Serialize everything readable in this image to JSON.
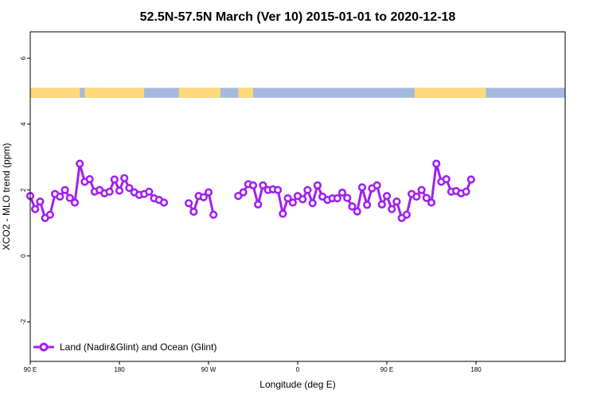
{
  "chart_data": {
    "type": "line",
    "title": "52.5N-57.5N March (Ver 10)   2015-01-01 to 2020-12-18",
    "xlabel": "Longitude (deg E)",
    "ylabel": "XCO2 - MLO trend (ppm)",
    "xlim": [
      90,
      630
    ],
    "ylim": [
      -3.2,
      6.8
    ],
    "x_ticks": [
      {
        "value": 90,
        "label": "90 E"
      },
      {
        "value": 180,
        "label": "180"
      },
      {
        "value": 270,
        "label": "90 W"
      },
      {
        "value": 360,
        "label": "0"
      },
      {
        "value": 450,
        "label": "90 E"
      },
      {
        "value": 540,
        "label": "180"
      }
    ],
    "y_ticks": [
      -2,
      0,
      2,
      4,
      6
    ],
    "grid": false,
    "legend": {
      "position": "bottom-left",
      "entries": [
        "Land (Nadir&Glint) and Ocean (Glint)"
      ]
    },
    "series": [
      {
        "name": "Land (Nadir&Glint) and Ocean (Glint)",
        "color": "#a020f0",
        "segments": [
          [
            [
              90,
              1.82
            ],
            [
              95,
              1.42
            ],
            [
              100,
              1.65
            ],
            [
              105,
              1.15
            ],
            [
              110,
              1.25
            ],
            [
              115,
              1.88
            ],
            [
              120,
              1.8
            ],
            [
              125,
              2.0
            ],
            [
              130,
              1.76
            ],
            [
              135,
              1.62
            ],
            [
              140,
              2.8
            ],
            [
              145,
              2.25
            ],
            [
              150,
              2.33
            ],
            [
              155,
              1.95
            ],
            [
              160,
              2.0
            ],
            [
              165,
              1.9
            ],
            [
              170,
              1.95
            ],
            [
              175,
              2.32
            ],
            [
              180,
              1.98
            ],
            [
              185,
              2.36
            ],
            [
              190,
              2.06
            ],
            [
              195,
              1.93
            ],
            [
              200,
              1.85
            ],
            [
              205,
              1.88
            ],
            [
              210,
              1.95
            ],
            [
              215,
              1.75
            ],
            [
              220,
              1.7
            ],
            [
              225,
              1.62
            ]
          ],
          [
            [
              250,
              1.6
            ],
            [
              255,
              1.34
            ],
            [
              260,
              1.82
            ],
            [
              265,
              1.78
            ],
            [
              270,
              1.93
            ],
            [
              275,
              1.25
            ]
          ],
          [
            [
              300,
              1.82
            ],
            [
              305,
              1.93
            ],
            [
              310,
              2.18
            ],
            [
              315,
              2.14
            ],
            [
              320,
              1.56
            ],
            [
              325,
              2.14
            ],
            [
              330,
              2.0
            ],
            [
              335,
              2.02
            ],
            [
              340,
              2.0
            ],
            [
              345,
              1.28
            ],
            [
              350,
              1.75
            ],
            [
              355,
              1.62
            ],
            [
              360,
              1.82
            ],
            [
              365,
              1.72
            ],
            [
              370,
              2.0
            ],
            [
              375,
              1.6
            ],
            [
              380,
              2.14
            ],
            [
              385,
              1.8
            ],
            [
              390,
              1.7
            ],
            [
              395,
              1.75
            ],
            [
              400,
              1.75
            ],
            [
              405,
              1.92
            ],
            [
              410,
              1.76
            ],
            [
              415,
              1.5
            ],
            [
              420,
              1.35
            ],
            [
              425,
              2.08
            ],
            [
              430,
              1.55
            ],
            [
              435,
              2.05
            ],
            [
              440,
              2.14
            ],
            [
              445,
              1.56
            ],
            [
              450,
              1.82
            ],
            [
              455,
              1.42
            ],
            [
              460,
              1.65
            ],
            [
              465,
              1.15
            ],
            [
              470,
              1.25
            ],
            [
              475,
              1.88
            ],
            [
              480,
              1.8
            ],
            [
              485,
              2.0
            ],
            [
              490,
              1.76
            ],
            [
              495,
              1.62
            ],
            [
              500,
              2.8
            ],
            [
              505,
              2.25
            ],
            [
              510,
              2.33
            ],
            [
              515,
              1.95
            ],
            [
              520,
              1.97
            ],
            [
              525,
              1.9
            ],
            [
              530,
              1.95
            ],
            [
              535,
              2.32
            ]
          ]
        ]
      }
    ],
    "surface_band": {
      "y_range": [
        4.8,
        5.1
      ],
      "land_color": "#ffd97a",
      "ocean_color": "#a3b9dd",
      "land_intervals": [
        [
          90,
          140
        ],
        [
          145,
          205
        ],
        [
          240,
          282
        ],
        [
          300,
          315
        ],
        [
          478,
          550
        ]
      ]
    }
  }
}
